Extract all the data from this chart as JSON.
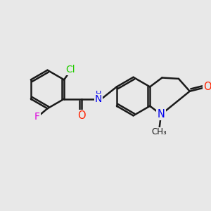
{
  "bg_color": "#e8e8e8",
  "bond_color": "#1a1a1a",
  "bond_width": 1.8,
  "dbo": 0.09,
  "atom_colors": {
    "Cl": "#22cc00",
    "F": "#dd00dd",
    "O": "#ff2200",
    "N": "#0000ee",
    "C": "#1a1a1a"
  },
  "fs": 9.5,
  "fig_size": [
    3.0,
    3.0
  ],
  "dpi": 100,
  "xlim": [
    0,
    10
  ],
  "ylim": [
    0,
    10
  ]
}
